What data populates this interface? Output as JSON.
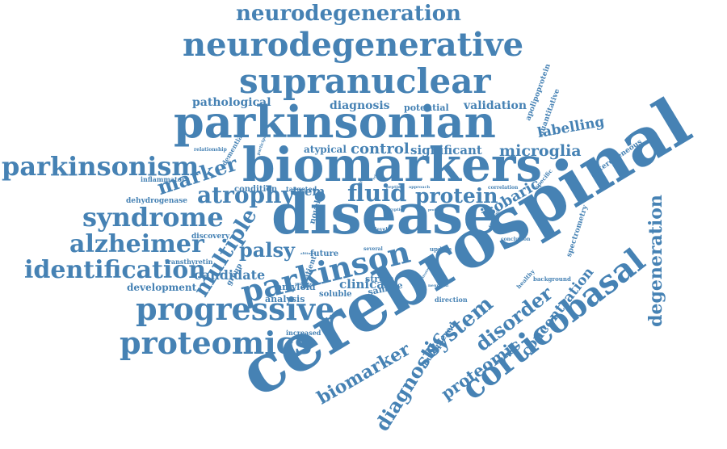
{
  "wordcloud": {
    "color": "#4682b4",
    "words": [
      "cerebrospinal",
      "disease",
      "parkinsonian",
      "biomarkers",
      "neurodegenerative",
      "supranuclear",
      "neurodegeneration",
      "corticobasal",
      "progressive",
      "proteomics",
      "parkinsonism",
      "parkinson",
      "syndrome",
      "alzheimer",
      "identification",
      "multiple",
      "diagnostic",
      "system",
      "disorder",
      "biomarker",
      "degeneration",
      "concentration",
      "atrophy",
      "marker",
      "fluid",
      "protein",
      "palsy",
      "proteomic",
      "microglia",
      "labelling",
      "isobaric",
      "control",
      "significant",
      "diagnosis",
      "validation",
      "pathological",
      "potential",
      "atypical",
      "candidate",
      "development",
      "clinical",
      "amyloid",
      "trem",
      "analysis",
      "sample",
      "multiplexed",
      "spectrometry",
      "heterogeneous",
      "apolipoprotein",
      "quantitative",
      "condition",
      "targeted",
      "dehydrogenase",
      "discovery",
      "transthyretin",
      "group",
      "inflammatory",
      "dementia",
      "relationship",
      "participant",
      "novel",
      "patient",
      "soluble",
      "strem",
      "future",
      "direction",
      "increased",
      "background",
      "healthy",
      "conclusion",
      "specific",
      "correlation",
      "approach",
      "peptide",
      "tryptic",
      "profiling",
      "update",
      "several",
      "level",
      "unbiased",
      "neuronal",
      "altitude",
      "reliable",
      "higher",
      "method",
      "correlate",
      "activator"
    ]
  }
}
